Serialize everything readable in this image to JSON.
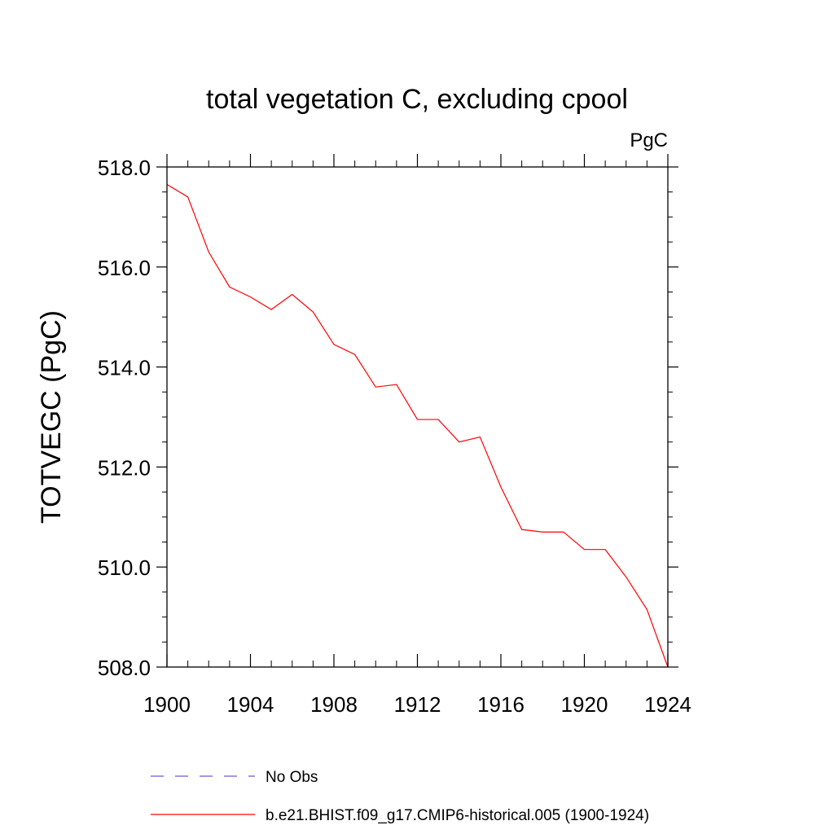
{
  "chart_data": {
    "type": "line",
    "title": "total vegetation C, excluding cpool",
    "units": "PgC",
    "ylabel": "TOTVEGC  (PgC)",
    "xlabel": "",
    "xlim": [
      1900,
      1924
    ],
    "ylim": [
      508.0,
      518.0
    ],
    "x_ticks": [
      "1900",
      "1904",
      "1908",
      "1912",
      "1916",
      "1920",
      "1924"
    ],
    "y_ticks": [
      "508.0",
      "510.0",
      "512.0",
      "514.0",
      "516.0",
      "518.0"
    ],
    "grid": false,
    "legend_position": "bottom",
    "series": [
      {
        "name": "No Obs",
        "color": "#6b5bd2",
        "style": "dashed",
        "x": [],
        "values": []
      },
      {
        "name": "b.e21.BHIST.f09_g17.CMIP6-historical.005 (1900-1924)",
        "color": "#ff0000",
        "style": "solid",
        "x": [
          1900,
          1901,
          1902,
          1903,
          1904,
          1905,
          1906,
          1907,
          1908,
          1909,
          1910,
          1911,
          1912,
          1913,
          1914,
          1915,
          1916,
          1917,
          1918,
          1919,
          1920,
          1921,
          1922,
          1923,
          1924
        ],
        "values": [
          517.65,
          517.4,
          516.3,
          515.6,
          515.4,
          515.15,
          515.45,
          515.1,
          514.45,
          514.25,
          513.6,
          513.65,
          512.95,
          512.95,
          512.5,
          512.6,
          511.6,
          510.75,
          510.7,
          510.7,
          510.35,
          510.35,
          509.8,
          509.15,
          508.0
        ]
      }
    ]
  }
}
